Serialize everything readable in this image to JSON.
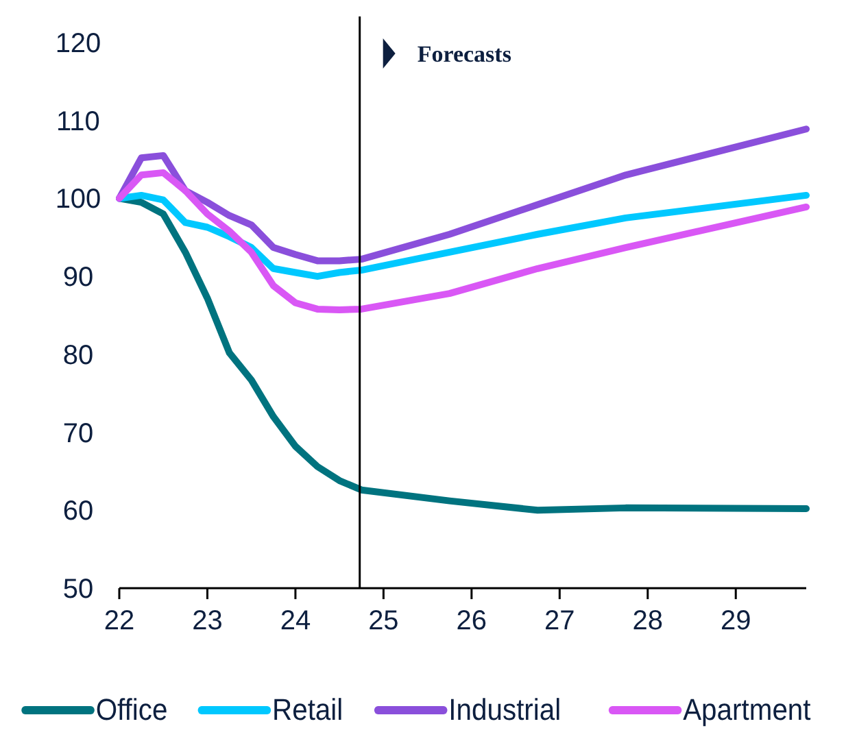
{
  "chart_data": {
    "type": "line",
    "x": [
      22,
      22.25,
      22.5,
      22.75,
      23,
      23.25,
      23.5,
      23.75,
      24,
      24.25,
      24.5,
      24.75,
      25.75,
      26.75,
      27.75,
      29.8
    ],
    "series": [
      {
        "name": "Office",
        "color": "#00737f",
        "values": [
          100,
          99.5,
          98,
          93.1,
          87.2,
          80.2,
          76.7,
          72,
          68.2,
          65.6,
          63.8,
          62.6,
          61.2,
          60,
          60.3,
          60.2
        ]
      },
      {
        "name": "Retail",
        "color": "#00c8ff",
        "values": [
          100,
          100.4,
          99.8,
          96.9,
          96.3,
          95.1,
          93.7,
          91,
          90.5,
          90,
          90.5,
          90.8,
          93.1,
          95.4,
          97.5,
          100.4
        ]
      },
      {
        "name": "Industrial",
        "color": "#8a4fdb",
        "values": [
          100,
          105.2,
          105.5,
          101,
          99.5,
          97.8,
          96.6,
          93.7,
          92.8,
          92,
          92,
          92.2,
          95.4,
          99.2,
          103,
          108.9
        ]
      },
      {
        "name": "Apartment",
        "color": "#d957f5",
        "values": [
          100,
          103,
          103.3,
          101,
          98,
          95.8,
          93.1,
          88.8,
          86.6,
          85.8,
          85.7,
          85.8,
          87.8,
          91,
          93.7,
          98.9
        ]
      }
    ],
    "xlim": [
      22,
      29.8
    ],
    "xticks": [
      22,
      23,
      24,
      25,
      26,
      27,
      28,
      29
    ],
    "ylim": [
      50,
      120
    ],
    "yticks": [
      50,
      60,
      70,
      80,
      90,
      100,
      110,
      120
    ],
    "ref_lines": [
      {
        "axis": "x",
        "value": 24.73,
        "label": "Forecasts",
        "color": "#000000"
      }
    ],
    "grid": false,
    "legend": "bottom",
    "marker": "none",
    "line_style": "solid"
  }
}
